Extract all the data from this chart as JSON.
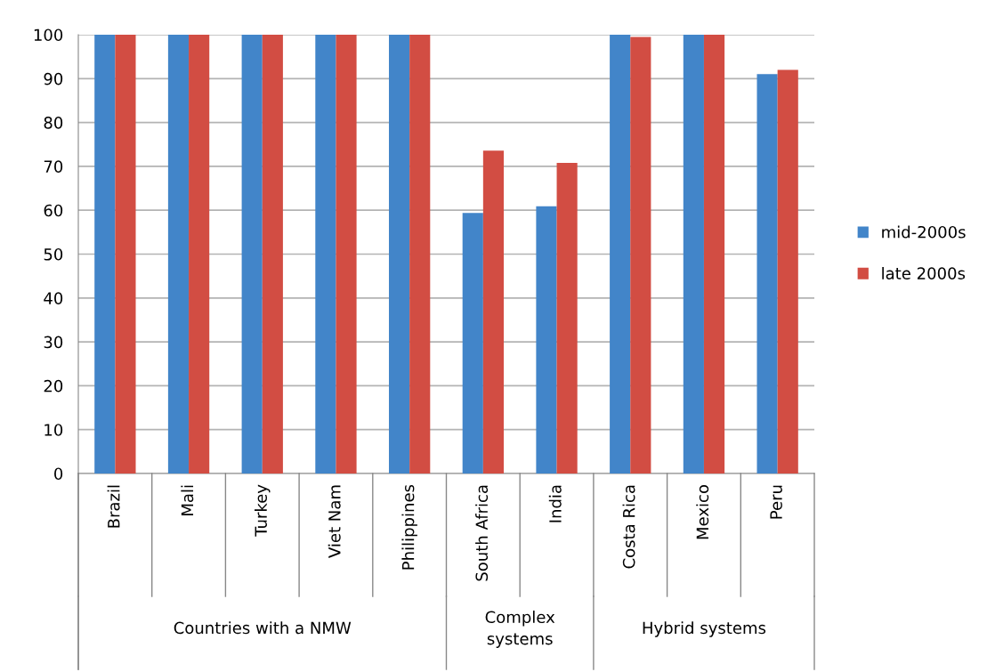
{
  "chart_data": {
    "type": "bar",
    "categories": [
      "Brazil",
      "Mali",
      "Turkey",
      "Viet Nam",
      "Philippines",
      "South Africa",
      "India",
      "Costa Rica",
      "Mexico",
      "Peru"
    ],
    "series": [
      {
        "name": "mid-2000s",
        "color": "#4285c9",
        "values": [
          100,
          100,
          100,
          100,
          100,
          59.4,
          60.9,
          100,
          100,
          91
        ]
      },
      {
        "name": "late 2000s",
        "color": "#d24d43",
        "values": [
          100,
          100,
          100,
          100,
          100,
          73.6,
          70.8,
          99.5,
          100,
          92
        ]
      }
    ],
    "ylim": [
      0,
      100
    ],
    "yticks": [
      0,
      10,
      20,
      30,
      40,
      50,
      60,
      70,
      80,
      90,
      100
    ],
    "grid": "y",
    "legend": "right",
    "annotations": [
      "Countries with a NMW",
      "Complex\nsystems",
      "Hybrid systems"
    ]
  }
}
